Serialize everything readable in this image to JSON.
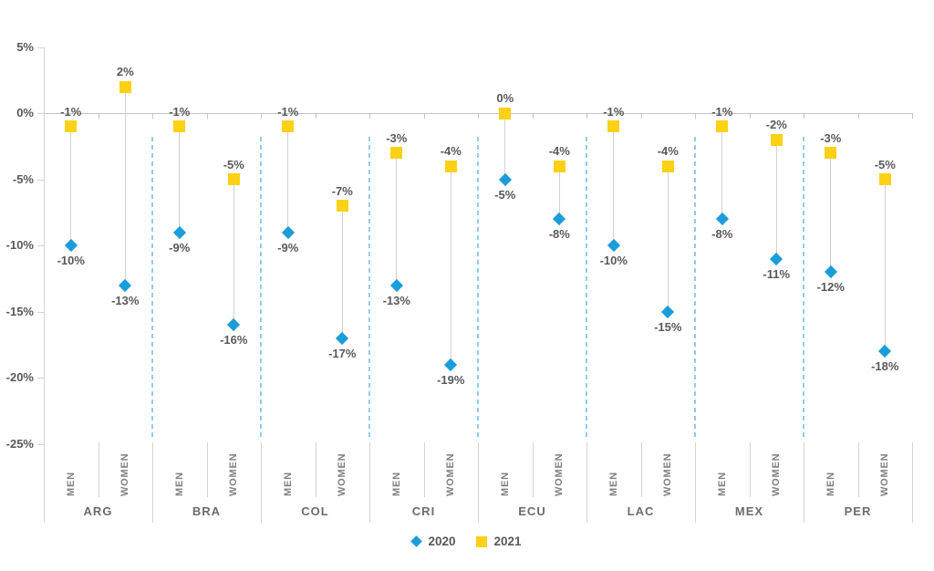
{
  "chart_data": {
    "type": "scatter",
    "subtype": "dumbbell",
    "title": "",
    "categories": [
      "ARG",
      "BRA",
      "COL",
      "CRI",
      "ECU",
      "LAC",
      "MEX",
      "PER"
    ],
    "sub_categories": [
      "MEN",
      "WOMEN"
    ],
    "series": [
      {
        "name": "2020",
        "marker": "diamond",
        "color": "#1B9DD9",
        "values": [
          -10,
          -13,
          -9,
          -16,
          -9,
          -17,
          -13,
          -19,
          -5,
          -8,
          -10,
          -15,
          -8,
          -11,
          -12,
          -18
        ],
        "labels": [
          "-10%",
          "-13%",
          "-9%",
          "-16%",
          "-9%",
          "-17%",
          "-13%",
          "-19%",
          "-5%",
          "-8%",
          "-10%",
          "-15%",
          "-8%",
          "-11%",
          "-12%",
          "-18%"
        ]
      },
      {
        "name": "2021",
        "marker": "square",
        "color": "#FCD116",
        "values": [
          -1,
          2,
          -1,
          -5,
          -1,
          -7,
          -3,
          -4,
          0,
          -4,
          -1,
          -4,
          -1,
          -2,
          -3,
          -5
        ],
        "labels": [
          "-1%",
          "2%",
          "-1%",
          "-5%",
          "-1%",
          "-7%",
          "-3%",
          "-4%",
          "0%",
          "-4%",
          "-1%",
          "-4%",
          "-1%",
          "-2%",
          "-3%",
          "-5%"
        ]
      }
    ],
    "y_axis": {
      "ticks": [
        {
          "label": "5%",
          "value": 5
        },
        {
          "label": "0%",
          "value": 0
        },
        {
          "label": "-5%",
          "value": -5
        },
        {
          "label": "-10%",
          "value": -10
        },
        {
          "label": "-15%",
          "value": -15
        },
        {
          "label": "-20%",
          "value": -20
        },
        {
          "label": "-25%",
          "value": -25
        }
      ]
    },
    "ylim": [
      -25,
      5
    ],
    "grid": "zero-line-only",
    "connector_lines": true,
    "group_separator_style": "dashed-blue",
    "legend_position": "bottom",
    "legend": [
      {
        "label": "2020",
        "marker": "diamond",
        "color": "#1B9DD9"
      },
      {
        "label": "2021",
        "marker": "square",
        "color": "#FCD116"
      }
    ]
  },
  "colors": {
    "series_2020": "#1B9DD9",
    "series_2021": "#FCD116",
    "separator_blue": "#8FCDEB",
    "axis_gray": "#D3D3D3",
    "zero_line_gray": "#C4C4C4",
    "stem_gray": "#D2D2D2",
    "value_text": "#58595B",
    "subcat_text": "#7E8083",
    "cat_text": "#6A6C6E"
  }
}
